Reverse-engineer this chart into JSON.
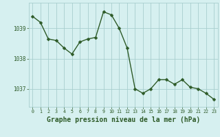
{
  "x": [
    0,
    1,
    2,
    3,
    4,
    5,
    6,
    7,
    8,
    9,
    10,
    11,
    12,
    13,
    14,
    15,
    16,
    17,
    18,
    19,
    20,
    21,
    22,
    23
  ],
  "y": [
    1039.4,
    1039.2,
    1038.65,
    1038.6,
    1038.35,
    1038.15,
    1038.55,
    1038.65,
    1038.7,
    1039.55,
    1039.45,
    1039.0,
    1038.35,
    1037.0,
    1036.85,
    1037.0,
    1037.3,
    1037.3,
    1037.15,
    1037.3,
    1037.05,
    1037.0,
    1036.85,
    1036.65
  ],
  "line_color": "#2d5a27",
  "marker_color": "#2d5a27",
  "bg_color": "#d6f0f0",
  "grid_color": "#a8cece",
  "xlabel": "Graphe pression niveau de la mer (hPa)",
  "xlabel_fontsize": 7.0,
  "ytick_labels": [
    "1037",
    "1038",
    "1039"
  ],
  "ytick_values": [
    1037,
    1038,
    1039
  ],
  "ylim": [
    1036.4,
    1039.85
  ],
  "xlim": [
    -0.5,
    23.5
  ],
  "xtick_labels": [
    "0",
    "1",
    "2",
    "3",
    "4",
    "5",
    "6",
    "7",
    "8",
    "9",
    "10",
    "11",
    "12",
    "13",
    "14",
    "15",
    "16",
    "17",
    "18",
    "19",
    "20",
    "21",
    "22",
    "23"
  ],
  "marker_size": 2.5,
  "line_width": 1.0
}
